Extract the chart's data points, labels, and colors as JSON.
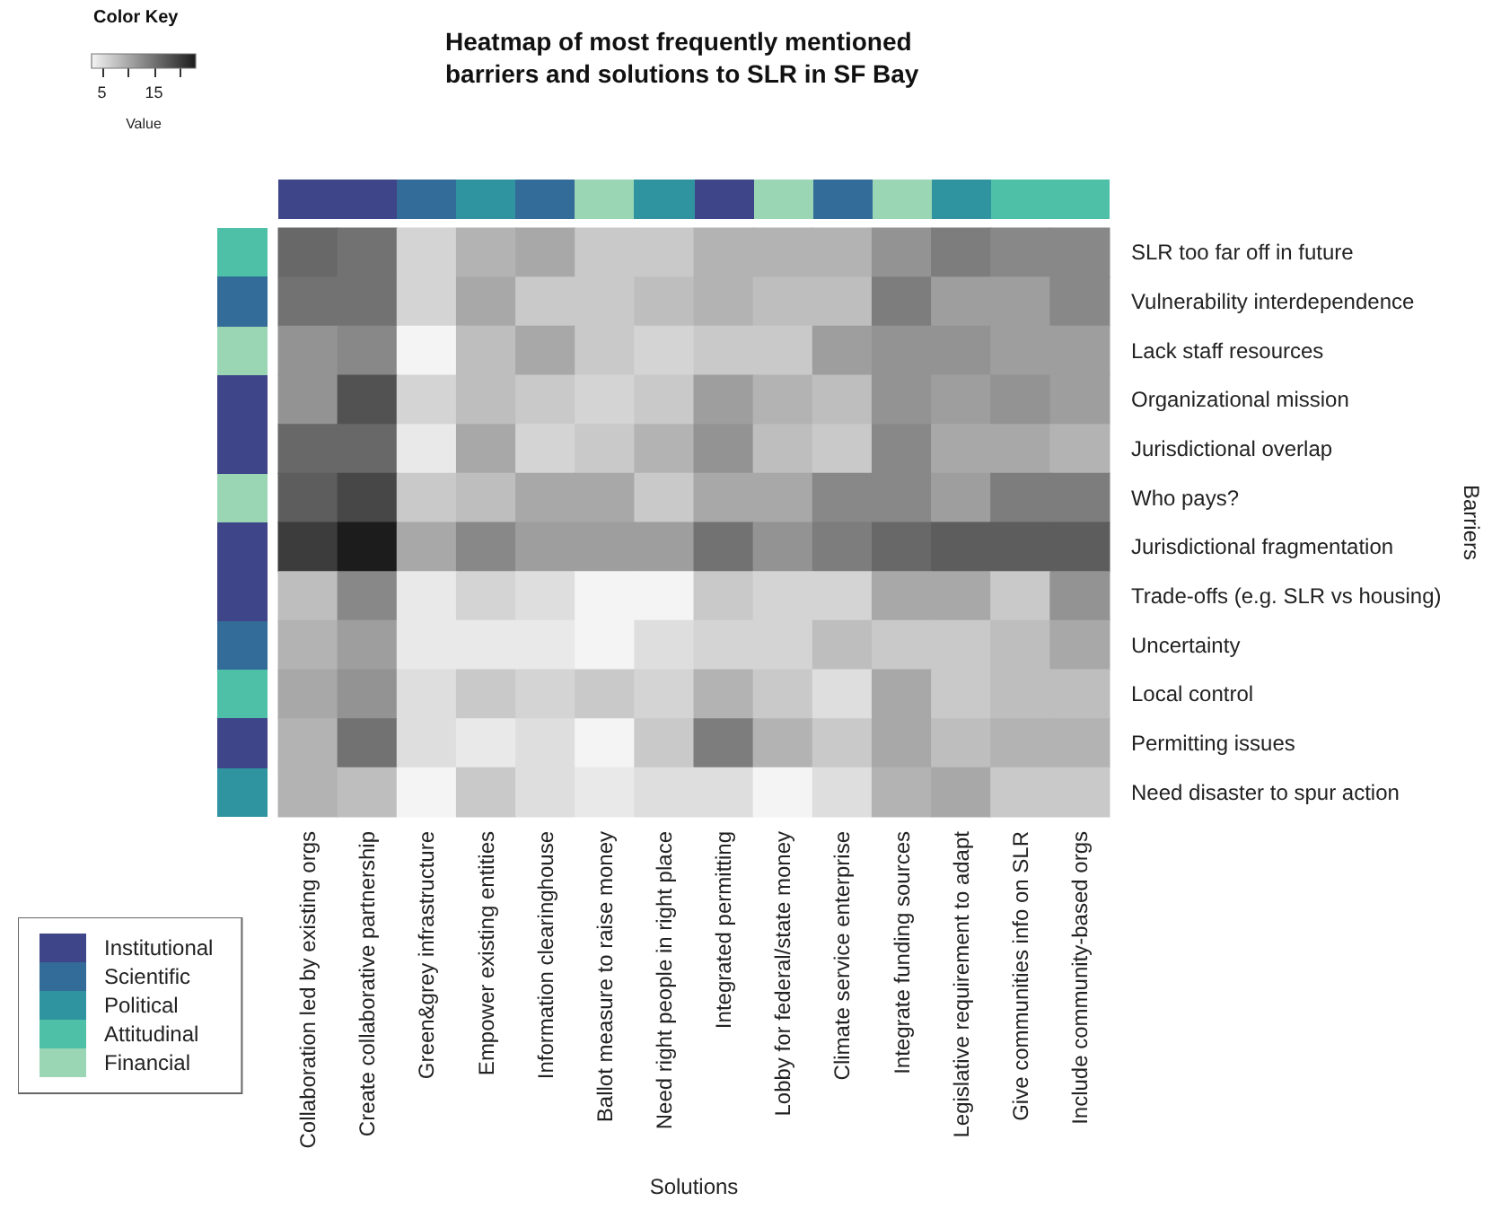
{
  "chart_data": [
    {
      "type": "heatmap",
      "title": "Heatmap of most frequently mentioned barriers and solutions to SLR in SF Bay",
      "xlabel": "Solutions",
      "ylabel": "Barriers",
      "clabel": "Value",
      "annotations": [
        "Color Key"
      ],
      "categories": [
        "Collaboration led by existing orgs",
        "Create collaborative partnership",
        "Green&grey infrastructure",
        "Empower existing entities",
        "Information clearinghouse",
        "Ballot measure to raise money",
        "Need right people in right place",
        "Integrated permitting",
        "Lobby for federal/state money",
        "Climate service enterprise",
        "Integrate funding sources",
        "Legislative requirement to adapt",
        "Give communities info on SLR",
        "Include community-based orgs"
      ],
      "y_categories": [
        "SLR too far off in future",
        "Vulnerability interdependence",
        "Lack staff resources",
        "Organizational mission",
        "Jurisdictional overlap",
        "Who pays?",
        "Jurisdictional fragmentation",
        "Trade-offs (e.g. SLR vs housing)",
        "Uncertainty",
        "Local control",
        "Permitting issues",
        "Need disaster to spur action"
      ],
      "cells": [
        [
          16,
          15,
          6,
          9,
          10,
          7,
          7,
          9,
          9,
          9,
          12,
          14,
          13,
          13
        ],
        [
          15,
          15,
          6,
          10,
          7,
          7,
          8,
          9,
          8,
          8,
          14,
          11,
          11,
          13
        ],
        [
          12,
          13,
          3,
          8,
          10,
          7,
          6,
          7,
          7,
          11,
          12,
          12,
          11,
          11
        ],
        [
          12,
          18,
          6,
          8,
          7,
          6,
          7,
          11,
          9,
          8,
          12,
          11,
          12,
          11
        ],
        [
          16,
          16,
          4,
          10,
          6,
          7,
          9,
          12,
          8,
          7,
          13,
          10,
          10,
          9
        ],
        [
          17,
          19,
          7,
          8,
          10,
          10,
          7,
          10,
          10,
          13,
          13,
          11,
          14,
          14
        ],
        [
          20,
          23,
          10,
          13,
          11,
          11,
          11,
          15,
          12,
          14,
          16,
          17,
          17,
          17
        ],
        [
          8,
          13,
          4,
          6,
          5,
          3,
          3,
          7,
          6,
          6,
          10,
          10,
          7,
          12
        ],
        [
          9,
          11,
          4,
          4,
          4,
          3,
          5,
          6,
          6,
          8,
          7,
          7,
          8,
          10
        ],
        [
          10,
          12,
          5,
          7,
          6,
          7,
          6,
          9,
          7,
          5,
          10,
          7,
          8,
          8
        ],
        [
          9,
          15,
          5,
          4,
          5,
          3,
          7,
          14,
          9,
          7,
          10,
          8,
          9,
          9
        ],
        [
          9,
          8,
          3,
          7,
          5,
          4,
          5,
          5,
          3,
          5,
          9,
          10,
          7,
          7
        ]
      ],
      "clim": [
        3,
        23
      ],
      "cticks": [
        5,
        {
          "value": 10,
          "label": null
        },
        15,
        {
          "value": 20,
          "label": null
        }
      ]
    },
    {
      "type": "other",
      "categories": [
        null,
        null,
        null,
        null,
        null,
        null,
        null,
        null,
        null,
        null,
        null,
        null,
        null,
        null
      ],
      "y_categories": [
        null
      ],
      "colors": [
        "#3f4589",
        "#3f4589",
        "#336b99",
        "#2f94a0",
        "#336b99",
        "#9bd6b4",
        "#2f94a0",
        "#3f4589",
        "#9bd6b4",
        "#336b99",
        "#9bd6b4",
        "#2f94a0",
        "#4ec0a7",
        "#4ec0a7"
      ]
    },
    {
      "type": "other",
      "categories": [
        null
      ],
      "y_categories": [
        null,
        null,
        null,
        null,
        null,
        null,
        null,
        null,
        null,
        null,
        null,
        null
      ],
      "colors": [
        "#4ec0a7",
        "#336b99",
        "#9bd6b4",
        "#3f4589",
        "#3f4589",
        "#9bd6b4",
        "#3f4589",
        "#3f4589",
        "#336b99",
        "#4ec0a7",
        "#3f4589",
        "#2f94a0"
      ]
    },
    {
      "type": "other",
      "categories": [
        "Institutional",
        "Scientific",
        "Political",
        "Attitudinal",
        "Financial"
      ],
      "colors": [
        "#3f4589",
        "#336b99",
        "#2f94a0",
        "#4ec0a7",
        "#9bd6b4"
      ]
    }
  ]
}
